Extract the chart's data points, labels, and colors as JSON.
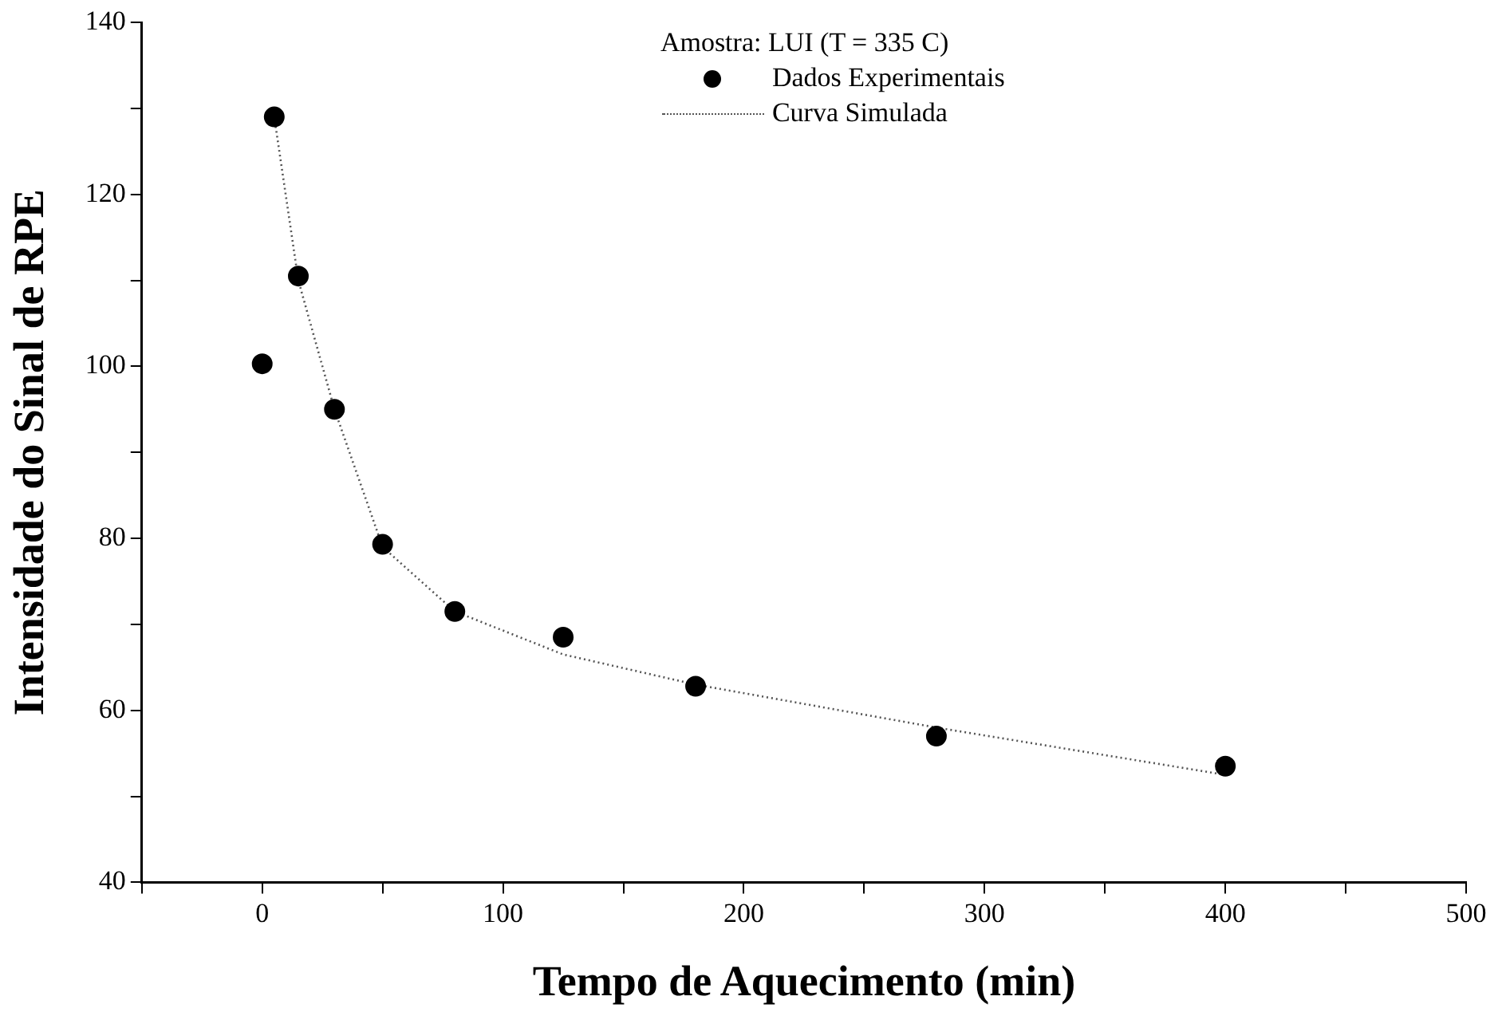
{
  "chart_data": {
    "type": "scatter",
    "xlabel": "Tempo de Aquecimento (min)",
    "ylabel": "Intensidade do Sinal de RPE",
    "legend_title": "Amostra: LUI (T = 335 C)",
    "series": [
      {
        "name": "Dados Experimentais",
        "color": "#000000",
        "marker": "circle",
        "x": [
          0,
          5,
          15,
          30,
          50,
          80,
          125,
          180,
          280,
          400
        ],
        "values": [
          100.3,
          129,
          110.5,
          95,
          79.3,
          71.5,
          68.5,
          62.8,
          57,
          53.5
        ]
      },
      {
        "name": "Curva Simulada",
        "type": "line",
        "color": "#555555",
        "marker": "none",
        "line_style": "dotted",
        "x": [
          5,
          15,
          30,
          50,
          80,
          125,
          180,
          280,
          400
        ],
        "values": [
          129,
          110,
          95,
          79,
          71.5,
          66.5,
          63,
          58,
          52.5
        ]
      }
    ],
    "xlim": [
      -50,
      500
    ],
    "ylim": [
      40,
      140
    ],
    "xticks": [
      {
        "value": -50,
        "label": null
      },
      0,
      {
        "value": 50,
        "label": null
      },
      100,
      {
        "value": 150,
        "label": null
      },
      200,
      {
        "value": 250,
        "label": null
      },
      300,
      {
        "value": 350,
        "label": null
      },
      400,
      {
        "value": 450,
        "label": null
      },
      500
    ],
    "yticks": [
      40,
      {
        "value": 50,
        "label": null
      },
      60,
      {
        "value": 70,
        "label": null
      },
      80,
      {
        "value": 90,
        "label": null
      },
      100,
      {
        "value": 110,
        "label": null
      },
      120,
      {
        "value": 130,
        "label": null
      },
      140
    ],
    "grid": false,
    "legend": "top right"
  }
}
